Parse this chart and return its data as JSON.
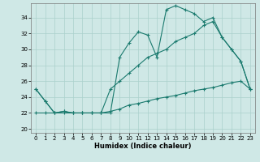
{
  "xlabel": "Humidex (Indice chaleur)",
  "background_color": "#cfe8e6",
  "grid_color": "#aad0cc",
  "line_color": "#1a7a6e",
  "xlim": [
    -0.5,
    23.5
  ],
  "ylim": [
    19.5,
    35.8
  ],
  "yticks": [
    20,
    22,
    24,
    26,
    28,
    30,
    32,
    34
  ],
  "xticks": [
    0,
    1,
    2,
    3,
    4,
    5,
    6,
    7,
    8,
    9,
    10,
    11,
    12,
    13,
    14,
    15,
    16,
    17,
    18,
    19,
    20,
    21,
    22,
    23
  ],
  "line1_y": [
    25.0,
    23.5,
    22.0,
    22.2,
    22.0,
    22.0,
    22.0,
    22.0,
    22.0,
    29.0,
    30.8,
    32.2,
    31.8,
    29.0,
    35.0,
    35.5,
    35.0,
    34.5,
    33.5,
    34.0,
    31.5,
    30.0,
    28.5,
    25.0
  ],
  "line2_y": [
    22.0,
    22.0,
    22.0,
    22.0,
    22.0,
    22.0,
    22.0,
    22.0,
    22.2,
    22.5,
    23.0,
    23.2,
    23.5,
    23.8,
    24.0,
    24.2,
    24.5,
    24.8,
    25.0,
    25.2,
    25.5,
    25.8,
    26.0,
    25.0
  ],
  "line3_y": [
    25.0,
    23.5,
    22.0,
    22.2,
    22.0,
    22.0,
    22.0,
    22.0,
    25.0,
    26.0,
    27.0,
    28.0,
    29.0,
    29.5,
    30.0,
    31.0,
    31.5,
    32.0,
    33.0,
    33.5,
    31.5,
    30.0,
    28.5,
    25.0
  ]
}
